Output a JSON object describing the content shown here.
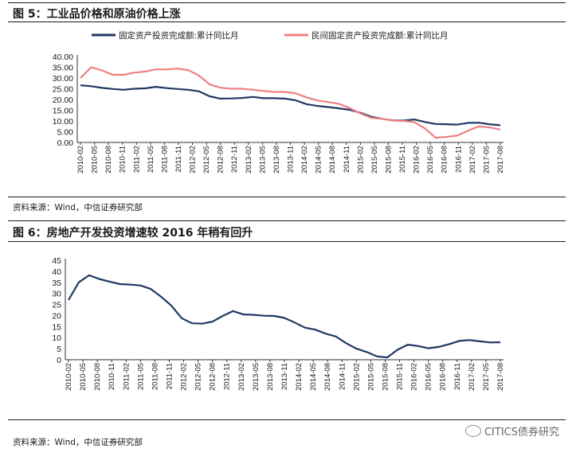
{
  "figures": [
    {
      "title": "图 5：工业品价格和原油价格上涨",
      "source": "资料来源：Wind，中信证券研究部"
    },
    {
      "title": "图 6：房地产开发投资增速较 2016 年稍有回升",
      "source": "资料来源：Wind，中信证券研究部"
    }
  ],
  "watermark": {
    "text": "CITICS债券研究",
    "icon": "wechat-icon"
  },
  "chart_data": [
    {
      "type": "line",
      "title": "",
      "ylim": [
        0,
        40
      ],
      "yticks": [
        "40.00",
        "35.00",
        "30.00",
        "25.00",
        "20.00",
        "15.00",
        "10.00",
        "5.00",
        "0.00"
      ],
      "xticks": [
        "2010-02",
        "2010-05",
        "2010-08",
        "2010-11",
        "2011-02",
        "2011-05",
        "2011-08",
        "2011-11",
        "2012-02",
        "2012-05",
        "2012-08",
        "2012-11",
        "2013-02",
        "2013-05",
        "2013-08",
        "2013-11",
        "2014-02",
        "2014-05",
        "2014-08",
        "2014-11",
        "2015-02",
        "2015-05",
        "2015-08",
        "2015-11",
        "2016-02",
        "2016-05",
        "2016-08",
        "2016-11",
        "2017-02",
        "2017-05",
        "2017-08"
      ],
      "legend_position": "top",
      "series": [
        {
          "name": "固定资产投资完成额:累计同比月",
          "color": "#1f3864",
          "values": [
            26.6,
            26.2,
            25.4,
            24.9,
            24.5,
            25.0,
            25.2,
            25.9,
            25.3,
            24.9,
            24.5,
            23.8,
            21.5,
            20.4,
            20.5,
            20.7,
            21.2,
            20.6,
            20.6,
            20.4,
            19.6,
            17.8,
            17.0,
            16.5,
            15.9,
            15.2,
            13.8,
            12.0,
            11.0,
            10.3,
            10.2,
            10.7,
            9.5,
            8.6,
            8.5,
            8.3,
            9.1,
            9.2,
            8.5,
            8.0
          ]
        },
        {
          "name": "民间固定资产投资完成额:累计同比月",
          "color": "#f08080",
          "values": [
            30.0,
            35.0,
            33.5,
            31.5,
            31.5,
            32.5,
            33.0,
            34.0,
            34.0,
            34.4,
            33.7,
            31.2,
            27.0,
            25.5,
            25.0,
            25.0,
            24.5,
            24.0,
            23.5,
            23.5,
            22.8,
            21.0,
            19.5,
            18.8,
            18.0,
            16.0,
            13.5,
            11.5,
            11.0,
            10.2,
            10.0,
            9.5,
            6.5,
            2.2,
            2.6,
            3.2,
            5.5,
            7.5,
            7.0,
            6.0
          ]
        }
      ]
    },
    {
      "type": "line",
      "title": "",
      "ylim": [
        0,
        45
      ],
      "yticks": [
        "45",
        "40",
        "35",
        "30",
        "25",
        "20",
        "15",
        "10",
        "5",
        "0"
      ],
      "xticks": [
        "2010-02",
        "2010-05",
        "2010-08",
        "2010-11",
        "2011-02",
        "2011-05",
        "2011-08",
        "2011-11",
        "2012-02",
        "2012-05",
        "2012-08",
        "2012-11",
        "2013-02",
        "2013-05",
        "2013-08",
        "2013-11",
        "2014-02",
        "2014-05",
        "2014-08",
        "2014-11",
        "2015-02",
        "2015-05",
        "2015-08",
        "2015-11",
        "2016-02",
        "2016-05",
        "2016-08",
        "2016-11",
        "2017-02",
        "2017-05",
        "2017-08"
      ],
      "series": [
        {
          "name": "",
          "color": "#1f3864",
          "values": [
            27.0,
            35.0,
            38.2,
            36.5,
            35.3,
            34.2,
            34.0,
            33.6,
            32.0,
            28.5,
            24.5,
            18.8,
            16.5,
            16.3,
            17.2,
            19.8,
            22.0,
            20.5,
            20.3,
            19.9,
            19.8,
            18.9,
            16.8,
            14.5,
            13.6,
            11.8,
            10.5,
            7.5,
            5.0,
            3.5,
            1.5,
            1.0,
            4.5,
            6.8,
            6.2,
            5.2,
            5.8,
            7.0,
            8.5,
            8.9,
            8.3,
            7.8,
            7.9
          ]
        }
      ]
    }
  ]
}
